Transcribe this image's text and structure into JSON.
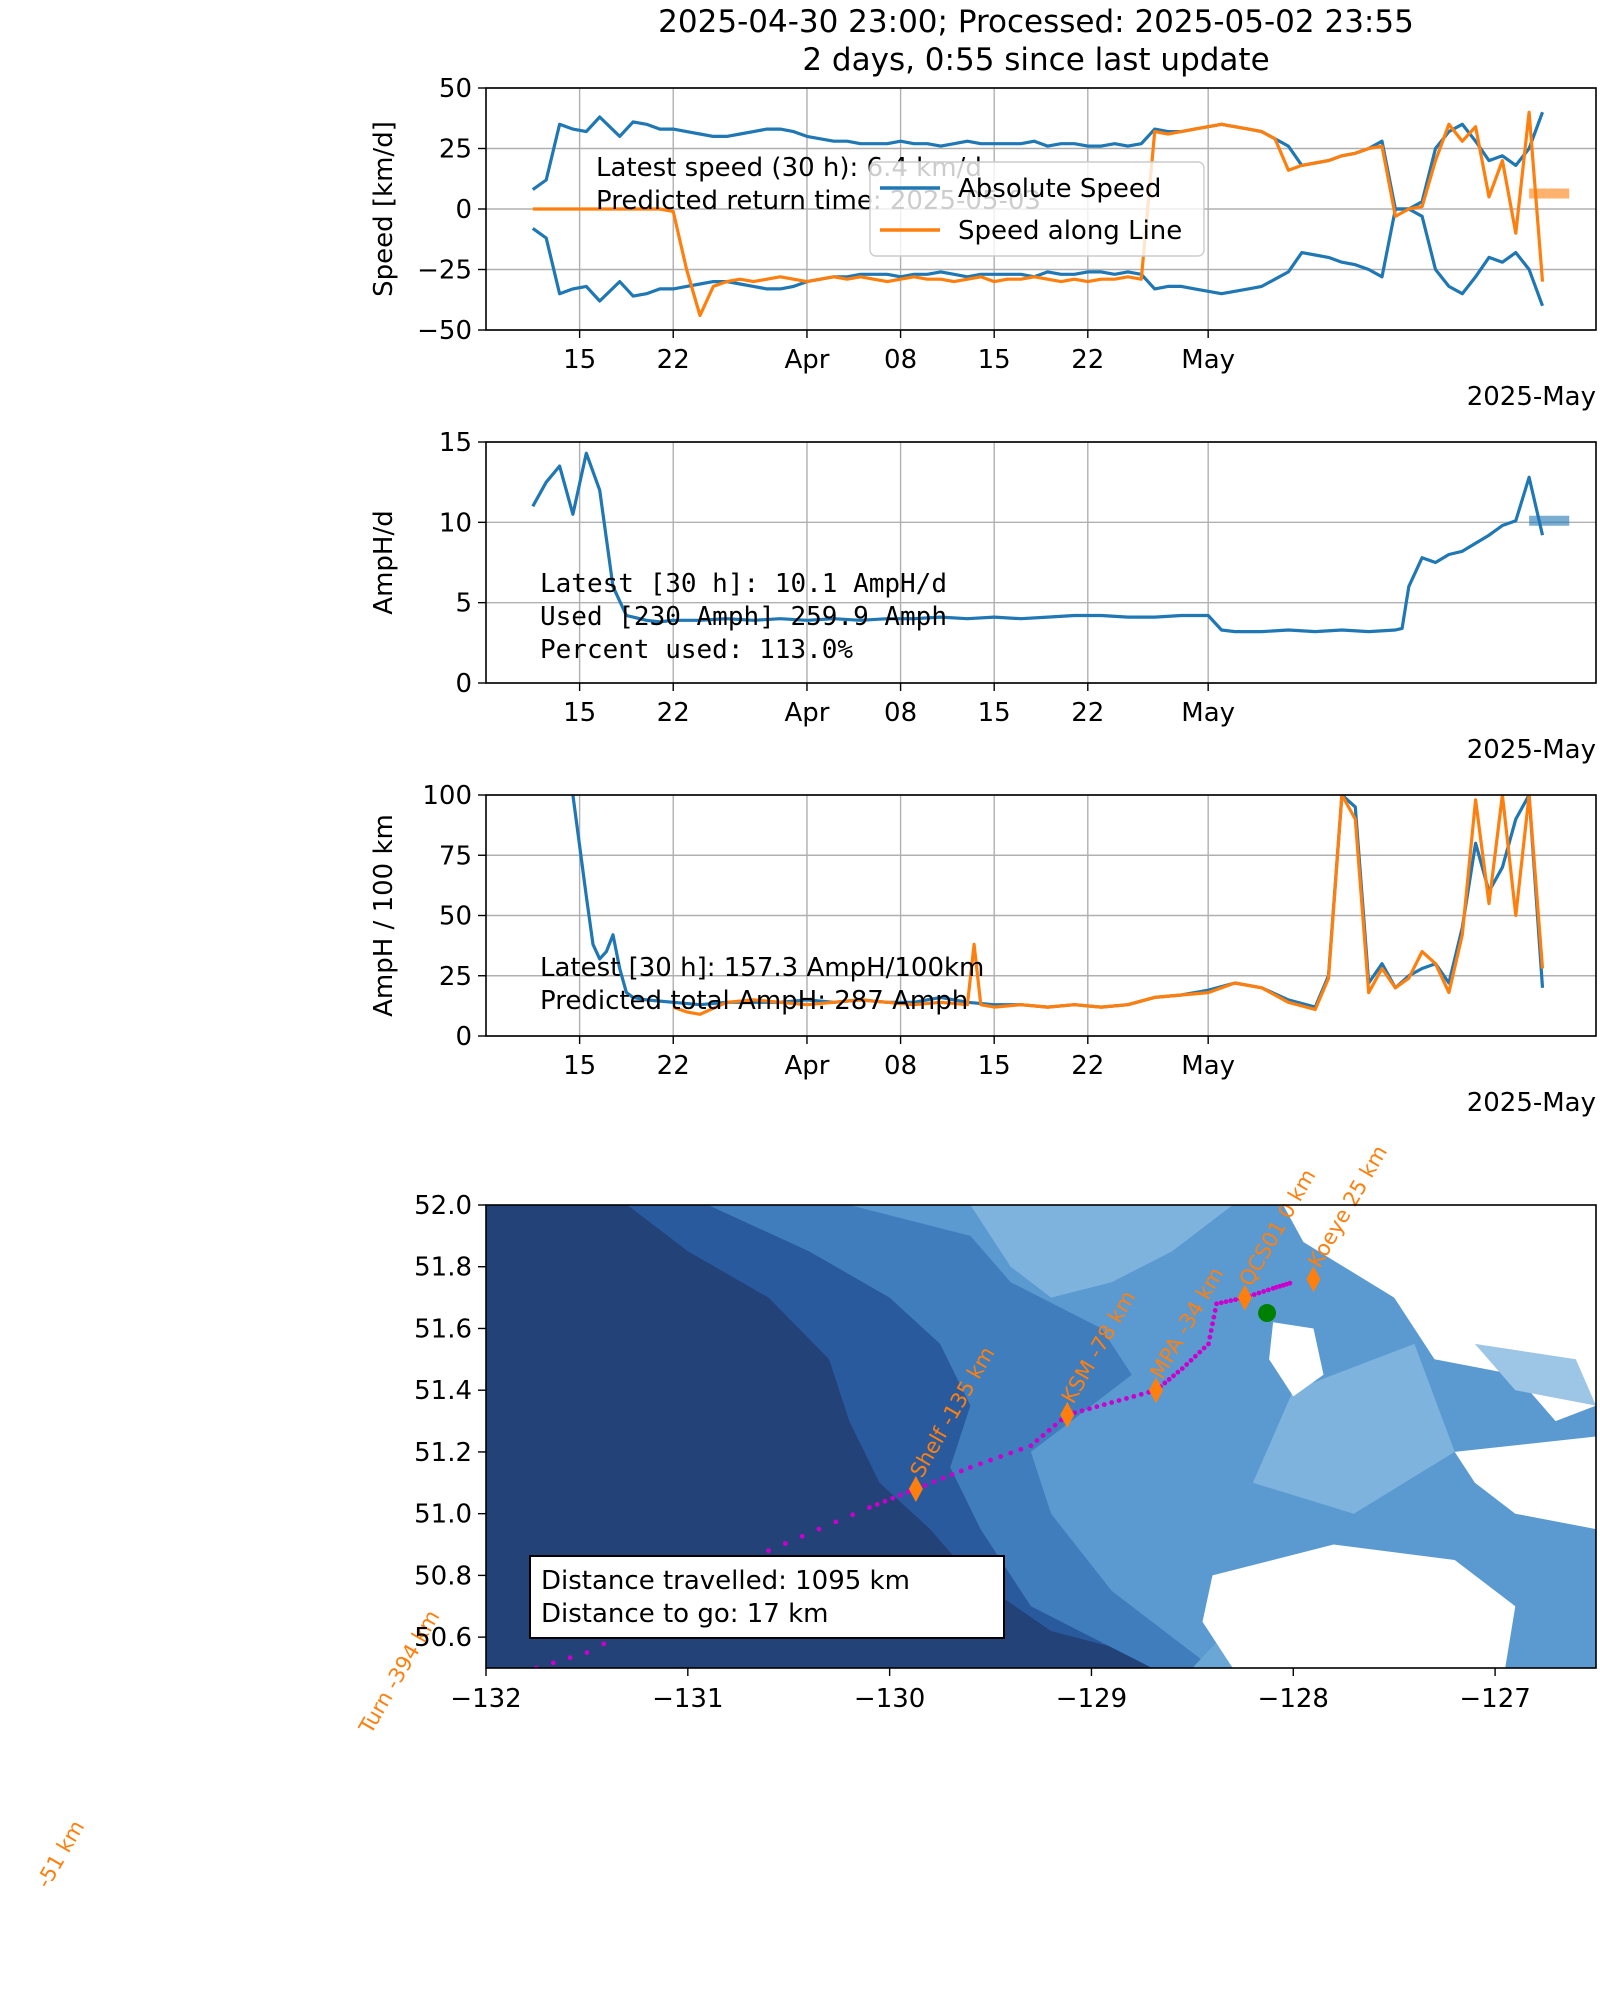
{
  "figure": {
    "title_line1": "2025-04-30 23:00; Processed: 2025-05-02 23:55",
    "title_line2": "2 days, 0:55 since last update"
  },
  "colors": {
    "series_blue": "#1f77b4",
    "series_orange": "#ff7f0e",
    "track": "#cc00cc",
    "glider": "#008000",
    "grid": "#b0b0b0"
  },
  "chart_data": [
    {
      "type": "line",
      "panel": "speed",
      "ylabel": "Speed [km/d]",
      "ylim": [
        -50,
        50
      ],
      "yticks": [
        "50",
        "25",
        "0",
        "−25",
        "−50"
      ],
      "xticks": [
        "15",
        "22",
        "Apr",
        "08",
        "15",
        "22",
        "May"
      ],
      "xtick_offset_label": "2025-May",
      "grid": true,
      "legend": {
        "placement": "upper-center",
        "entries": [
          "Absolute Speed",
          "Speed along Line"
        ]
      },
      "annotations": [
        "Latest speed (30 h): 6.4 km/d",
        "Predicted return time: 2025-05-03"
      ],
      "series": [
        {
          "name": "Absolute Speed",
          "color": "#1f77b4",
          "x": [
            -20.5,
            -19.5,
            -18.5,
            -17.5,
            -16.5,
            -15.5,
            -14,
            -13,
            -12,
            -11,
            -10,
            -9,
            -8,
            -7,
            -6,
            -5,
            -4,
            -3,
            -2,
            -1,
            0,
            1,
            2,
            3,
            4,
            5,
            6,
            7,
            8,
            9,
            10,
            11,
            12,
            13,
            14,
            15,
            16,
            17,
            18,
            19,
            20,
            21,
            22,
            23,
            24,
            25,
            26,
            27,
            28,
            29,
            30,
            31,
            32,
            33,
            34,
            35,
            36,
            37,
            38,
            39,
            40,
            41,
            42,
            43,
            44,
            45,
            46,
            47,
            48,
            49,
            50,
            51,
            52,
            53,
            54,
            55
          ],
          "y": [
            8,
            12,
            35,
            33,
            32,
            38,
            30,
            36,
            35,
            33,
            33,
            32,
            31,
            30,
            30,
            31,
            32,
            33,
            33,
            32,
            30,
            29,
            28,
            28,
            27,
            27,
            27,
            28,
            27,
            27,
            26,
            27,
            28,
            27,
            27,
            27,
            27,
            28,
            26,
            27,
            27,
            26,
            26,
            27,
            26,
            27,
            33,
            32,
            32,
            33,
            34,
            35,
            34,
            33,
            32,
            29,
            26,
            18,
            19,
            20,
            22,
            23,
            25,
            28,
            0,
            0,
            3,
            25,
            32,
            35,
            28,
            20,
            22,
            18,
            25,
            40
          ]
        },
        {
          "name": "Speed along Line",
          "color": "#ff7f0e",
          "x": [
            -20.5,
            -19.5,
            -18.5,
            -17.5,
            -16.5,
            -15.5,
            -14,
            -13,
            -12,
            -11,
            -10,
            -9,
            -8,
            -7,
            -6,
            -5,
            -4,
            -3,
            -2,
            -1,
            0,
            1,
            2,
            3,
            4,
            5,
            6,
            7,
            8,
            9,
            10,
            11,
            12,
            13,
            14,
            15,
            16,
            17,
            18,
            19,
            20,
            21,
            22,
            23,
            24,
            25,
            26,
            27,
            28,
            29,
            30,
            31,
            32,
            33,
            34,
            35,
            36,
            37,
            38,
            39,
            40,
            41,
            42,
            43,
            44,
            45,
            46,
            47,
            48,
            49,
            50,
            51,
            52,
            53,
            54,
            55
          ],
          "y": [
            0,
            0,
            0,
            0,
            0,
            0,
            0,
            0,
            0,
            0,
            -1,
            -25,
            -44,
            -32,
            -30,
            -29,
            -30,
            -29,
            -28,
            -29,
            -30,
            -29,
            -28,
            -29,
            -28,
            -29,
            -30,
            -29,
            -28,
            -29,
            -29,
            -30,
            -29,
            -28,
            -30,
            -29,
            -29,
            -28,
            -29,
            -30,
            -29,
            -30,
            -29,
            -29,
            -28,
            -29,
            32,
            31,
            32,
            33,
            34,
            35,
            34,
            33,
            32,
            29,
            16,
            18,
            19,
            20,
            22,
            23,
            25,
            26,
            -3,
            0,
            1,
            20,
            35,
            28,
            34,
            5,
            20,
            -10,
            40,
            -30
          ]
        }
      ]
    },
    {
      "type": "line",
      "panel": "amph_per_day",
      "ylabel": "AmpH/d",
      "ylim": [
        0,
        15
      ],
      "yticks": [
        "15",
        "10",
        "5",
        "0"
      ],
      "xticks": [
        "15",
        "22",
        "Apr",
        "08",
        "15",
        "22",
        "May"
      ],
      "xtick_offset_label": "2025-May",
      "grid": true,
      "annotations": [
        "Latest [30 h]:  10.1 AmpH/d",
        "Used [230 Amph] 259.9 Amph",
        "Percent used:   113.0%"
      ],
      "series": [
        {
          "name": "",
          "color": "#1f77b4",
          "x": [
            -20.5,
            -19.5,
            -18.5,
            -17.5,
            -16.5,
            -15.5,
            -14.5,
            -13.5,
            -12,
            -11,
            -10,
            -8,
            -6,
            -4,
            -2,
            0,
            2,
            4,
            6,
            8,
            10,
            12,
            14,
            16,
            18,
            20,
            22,
            24,
            26,
            28,
            30,
            31,
            32,
            34,
            36,
            38,
            40,
            42,
            44,
            44.5,
            45,
            46,
            47,
            48,
            49,
            50,
            51,
            52,
            53,
            54,
            55
          ],
          "y": [
            11,
            12.5,
            13.5,
            10.5,
            14.3,
            12,
            6,
            4.2,
            3.9,
            3.8,
            3.9,
            3.9,
            4.0,
            3.9,
            4.0,
            3.9,
            4.0,
            3.9,
            4.0,
            4.0,
            4.1,
            4.0,
            4.1,
            4.0,
            4.1,
            4.2,
            4.2,
            4.1,
            4.1,
            4.2,
            4.2,
            3.3,
            3.2,
            3.2,
            3.3,
            3.2,
            3.3,
            3.2,
            3.3,
            3.4,
            6,
            7.8,
            7.5,
            8.0,
            8.2,
            8.7,
            9.2,
            9.8,
            10.1,
            12.8,
            9.2
          ]
        }
      ]
    },
    {
      "type": "line",
      "panel": "amph_per_100km",
      "ylabel": "AmpH / 100 km",
      "ylim": [
        0,
        100
      ],
      "yticks": [
        "100",
        "75",
        "50",
        "25",
        "0"
      ],
      "xticks": [
        "15",
        "22",
        "Apr",
        "08",
        "15",
        "22",
        "May"
      ],
      "xtick_offset_label": "2025-May",
      "grid": true,
      "annotations": [
        "Latest [30 h]:  157.3 AmpH/100km",
        "Predicted total AmpH: 287 Amph"
      ],
      "series": [
        {
          "name": "",
          "color": "#1f77b4",
          "x": [
            -17.5,
            -16.5,
            -16,
            -15.5,
            -15,
            -14.5,
            -14,
            -13.5,
            -13,
            -12,
            -10,
            -8,
            -6,
            -4,
            -2,
            0,
            2,
            4,
            6,
            8,
            10,
            12,
            14,
            16,
            18,
            20,
            22,
            24,
            26,
            28,
            30,
            32,
            34,
            36,
            38,
            39,
            40,
            41,
            42,
            43,
            44,
            45,
            46,
            47,
            48,
            49,
            50,
            51,
            52,
            53,
            54,
            55
          ],
          "y": [
            100,
            58,
            38,
            32,
            35,
            42,
            28,
            18,
            16,
            15,
            14,
            13,
            14,
            14,
            14,
            15,
            14,
            15,
            14,
            14,
            16,
            14,
            13,
            13,
            12,
            13,
            12,
            13,
            16,
            17,
            19,
            22,
            20,
            15,
            12,
            25,
            100,
            95,
            22,
            30,
            20,
            25,
            28,
            30,
            22,
            45,
            80,
            60,
            70,
            90,
            100,
            20
          ]
        },
        {
          "name": "",
          "color": "#ff7f0e",
          "x": [
            -10,
            -9,
            -8,
            -6,
            -4,
            -2,
            0,
            2,
            4,
            6,
            8,
            10,
            12,
            12.5,
            13,
            14,
            16,
            18,
            20,
            22,
            24,
            26,
            28,
            30,
            32,
            34,
            36,
            38,
            39,
            40,
            41,
            42,
            43,
            44,
            45,
            46,
            47,
            48,
            49,
            50,
            51,
            52,
            53,
            54,
            55
          ],
          "y": [
            12,
            10,
            9,
            14,
            15,
            14,
            13,
            14,
            15,
            14,
            13,
            14,
            13,
            38,
            13,
            12,
            13,
            12,
            13,
            12,
            13,
            16,
            17,
            18,
            22,
            20,
            14,
            11,
            24,
            100,
            90,
            18,
            28,
            20,
            24,
            35,
            30,
            18,
            42,
            98,
            55,
            100,
            50,
            100,
            28
          ]
        }
      ]
    },
    {
      "type": "map",
      "panel": "track_map",
      "xticks": [
        "−132",
        "−131",
        "−130",
        "−129",
        "−128",
        "−127"
      ],
      "yticks": [
        "52.0",
        "51.8",
        "51.6",
        "51.4",
        "51.2",
        "51.0",
        "50.8",
        "50.6"
      ],
      "xlim": [
        -132,
        -126.5
      ],
      "ylim": [
        50.5,
        52.0
      ],
      "waypoints": [
        {
          "label": "Koeye 25 km",
          "lon": -127.9,
          "lat": 51.76
        },
        {
          "label": "QCS01 0 km",
          "lon": -128.24,
          "lat": 51.7
        },
        {
          "label": "MPA -34 km",
          "lon": -128.68,
          "lat": 51.4
        },
        {
          "label": "KSM -78 km",
          "lon": -129.12,
          "lat": 51.32
        },
        {
          "label": "Shelf -135 km",
          "lon": -129.87,
          "lat": 51.08
        },
        {
          "label": "Turn -394 km",
          "lon": -132.6,
          "lat": 50.25
        },
        {
          "label": "-51 km",
          "lon": -134.2,
          "lat": 49.75
        }
      ],
      "glider_position": {
        "lon": -128.13,
        "lat": 51.65
      },
      "info_box": [
        "Distance travelled: 1095 km",
        "Distance to go: 17 km"
      ]
    }
  ]
}
